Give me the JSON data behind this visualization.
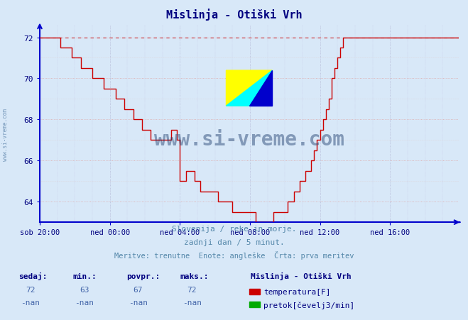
{
  "title": "Mislinja - Otiški Vrh",
  "title_color": "#000080",
  "background_color": "#d8e8f8",
  "plot_bg_color": "#d8e8f8",
  "line_color": "#cc0000",
  "dashed_line_color": "#cc0000",
  "dashed_line_value": 72,
  "grid_color_major": "#bbbbdd",
  "grid_color_minor": "#ccccee",
  "axis_color": "#0000cc",
  "tick_label_color": "#000080",
  "xlim": [
    0,
    287
  ],
  "ylim": [
    63.0,
    72.6
  ],
  "yticks": [
    64,
    66,
    68,
    70,
    72
  ],
  "xtick_labels": [
    "sob 20:00",
    "ned 00:00",
    "ned 04:00",
    "ned 08:00",
    "ned 12:00",
    "ned 16:00"
  ],
  "xtick_positions": [
    0,
    48,
    96,
    144,
    192,
    240
  ],
  "footer_line1": "Slovenija / reke in morje.",
  "footer_line2": "zadnji dan / 5 minut.",
  "footer_line3": "Meritve: trenutne  Enote: angleške  Črta: prva meritev",
  "footer_color": "#5588aa",
  "legend_title": "Mislinja - Otiški Vrh",
  "legend_items": [
    {
      "label": "temperatura[F]",
      "color": "#cc0000"
    },
    {
      "label": "pretok[čevelj3/min]",
      "color": "#00aa00"
    }
  ],
  "stats_labels": [
    "sedaj:",
    "min.:",
    "povpr.:",
    "maks.:"
  ],
  "stats_temp": [
    "72",
    "63",
    "67",
    "72"
  ],
  "stats_flow": [
    "-nan",
    "-nan",
    "-nan",
    "-nan"
  ],
  "watermark": "www.si-vreme.com",
  "watermark_color": "#1a3a6a",
  "watermark_alpha": 0.45,
  "side_text": "www.si-vreme.com",
  "side_text_color": "#7799bb"
}
